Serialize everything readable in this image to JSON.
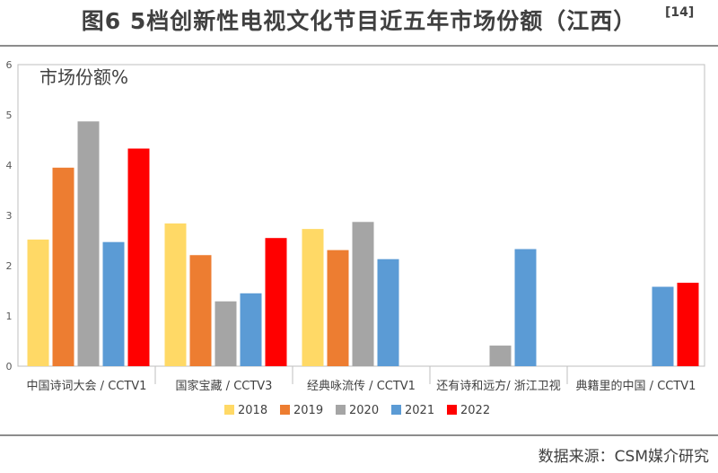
{
  "page": {
    "title": "图6 5档创新性电视文化节目近五年市场份额（江西）",
    "reference": "[14]",
    "source": "数据来源：CSM媒介研究"
  },
  "chart_data": {
    "type": "bar",
    "title": "",
    "ylabel": "市场份额%",
    "xlabel": "",
    "ylim": [
      0,
      6
    ],
    "yticks": [
      0,
      1,
      2,
      3,
      4,
      5,
      6
    ],
    "grid": false,
    "legend_position": "bottom",
    "categories": [
      "中国诗词大会 / CCTV1",
      "国家宝藏 / CCTV3",
      "经典咏流传 / CCTV1",
      "还有诗和远方/ 浙江卫视",
      "典籍里的中国 / CCTV1"
    ],
    "series": [
      {
        "name": "2018",
        "color": "#FFD966",
        "values": [
          2.52,
          2.84,
          2.73,
          null,
          null
        ]
      },
      {
        "name": "2019",
        "color": "#ED7D31",
        "values": [
          3.95,
          2.21,
          2.31,
          null,
          null
        ]
      },
      {
        "name": "2020",
        "color": "#A5A5A5",
        "values": [
          4.87,
          1.29,
          2.87,
          0.41,
          null
        ]
      },
      {
        "name": "2021",
        "color": "#5B9BD5",
        "values": [
          2.47,
          1.45,
          2.13,
          2.33,
          1.58
        ]
      },
      {
        "name": "2022",
        "color": "#FF0000",
        "values": [
          4.33,
          2.55,
          null,
          null,
          1.66
        ]
      }
    ]
  }
}
